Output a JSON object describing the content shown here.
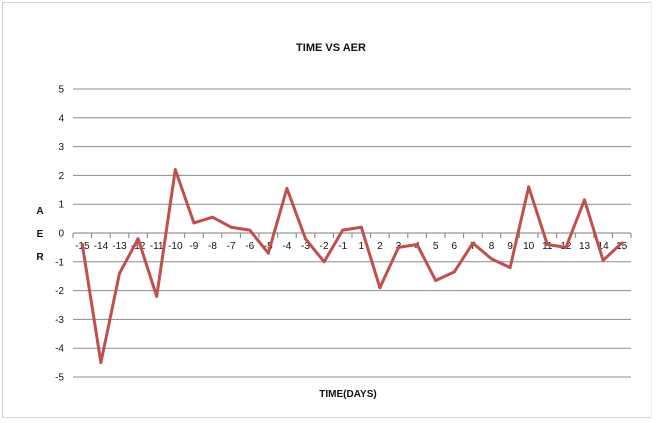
{
  "chart_data": {
    "type": "line",
    "title": "TIME VS AER",
    "xlabel": "TIME(DAYS)",
    "ylabel": "AER",
    "x": [
      -15,
      -14,
      -13,
      -12,
      -11,
      -10,
      -9,
      -8,
      -7,
      -6,
      -5,
      -4,
      -3,
      -2,
      -1,
      1,
      2,
      3,
      4,
      5,
      6,
      7,
      8,
      9,
      10,
      11,
      12,
      13,
      14,
      15
    ],
    "x_tick_labels": [
      "-15",
      "-14",
      "-13",
      "-12",
      "-11",
      "-10",
      "-9",
      "-8",
      "-7",
      "-6",
      "-5",
      "-4",
      "-3",
      "-2",
      "-1",
      "1",
      "2",
      "3",
      "4",
      "5",
      "6",
      "7",
      "8",
      "9",
      "10",
      "11",
      "12",
      "13",
      "14",
      "15"
    ],
    "y_ticks": [
      5,
      4,
      3,
      2,
      1,
      0,
      -1,
      -2,
      -3,
      -4,
      -5
    ],
    "y_tick_labels": [
      "5",
      "4",
      "3",
      "2",
      "1",
      "0",
      "-1",
      "-2",
      "-3",
      "-4",
      "-5"
    ],
    "series": [
      {
        "values": [
          -0.4,
          -4.5,
          -1.4,
          -0.2,
          -2.2,
          2.2,
          0.35,
          0.55,
          0.2,
          0.1,
          -0.7,
          1.55,
          -0.2,
          -1.0,
          0.1,
          0.2,
          -1.9,
          -0.5,
          -0.4,
          -1.65,
          -1.35,
          -0.35,
          -0.9,
          -1.2,
          1.6,
          -0.4,
          -0.5,
          1.15,
          -0.95,
          -0.35
        ],
        "color": "#c0504d"
      }
    ],
    "ylim": [
      -5,
      5
    ],
    "grid": true,
    "legend": "none"
  }
}
